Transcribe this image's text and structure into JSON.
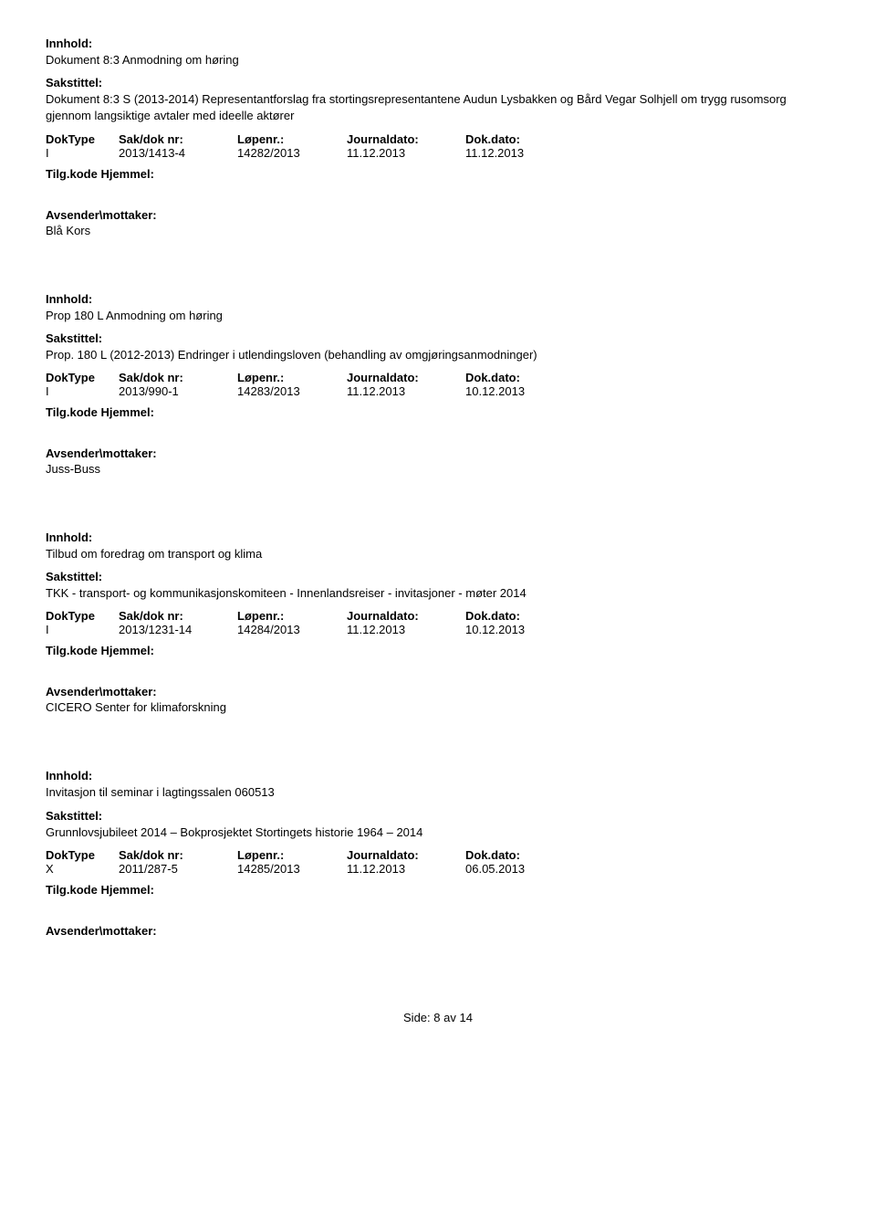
{
  "labels": {
    "innhold": "Innhold:",
    "sakstittel": "Sakstittel:",
    "doktype": "DokType",
    "saknr": "Sak/dok nr:",
    "lopenr": "Løpenr.:",
    "journaldato": "Journaldato:",
    "dokdato": "Dok.dato:",
    "tilgkode": "Tilg.kode",
    "hjemmel": "Hjemmel:",
    "avsender": "Avsender\\mottaker:"
  },
  "entries": [
    {
      "innhold": "Dokument 8:3 Anmodning om høring",
      "sakstittel": "Dokument 8:3 S (2013-2014) Representantforslag fra stortingsrepresentantene Audun Lysbakken og Bård Vegar Solhjell om trygg rusomsorg gjennom langsiktige avtaler med ideelle aktører",
      "doktype": "I",
      "saknr": "2013/1413-4",
      "lopenr": "14282/2013",
      "journaldato": "11.12.2013",
      "dokdato": "11.12.2013",
      "avsender": "Blå Kors"
    },
    {
      "innhold": "Prop 180 L Anmodning om høring",
      "sakstittel": "Prop. 180 L (2012-2013) Endringer i utlendingsloven (behandling av omgjøringsanmodninger)",
      "doktype": "I",
      "saknr": "2013/990-1",
      "lopenr": "14283/2013",
      "journaldato": "11.12.2013",
      "dokdato": "10.12.2013",
      "avsender": "Juss-Buss"
    },
    {
      "innhold": "Tilbud om foredrag om transport og klima",
      "sakstittel": "TKK - transport- og kommunikasjonskomiteen - Innenlandsreiser - invitasjoner - møter 2014",
      "doktype": "I",
      "saknr": "2013/1231-14",
      "lopenr": "14284/2013",
      "journaldato": "11.12.2013",
      "dokdato": "10.12.2013",
      "avsender": "CICERO Senter for klimaforskning"
    },
    {
      "innhold": "Invitasjon til seminar i lagtingssalen 060513",
      "sakstittel": "Grunnlovsjubileet 2014 – Bokprosjektet Stortingets historie 1964 – 2014",
      "doktype": "X",
      "saknr": "2011/287-5",
      "lopenr": "14285/2013",
      "journaldato": "11.12.2013",
      "dokdato": "06.05.2013",
      "avsender": ""
    }
  ],
  "footer": {
    "prefix": "Side:",
    "current": "8",
    "sep": "av",
    "total": "14"
  }
}
